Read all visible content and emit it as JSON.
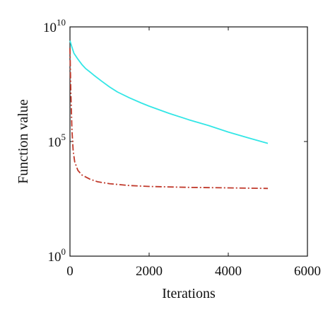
{
  "chart_data": {
    "type": "line",
    "title": "",
    "xlabel": "Iterations",
    "ylabel": "Function value",
    "xlim": [
      0,
      6000
    ],
    "ylim": [
      1,
      10000000000
    ],
    "yscale": "log",
    "grid": false,
    "x_ticks": [
      {
        "value": 0,
        "label": "0"
      },
      {
        "value": 2000,
        "label": "2000"
      },
      {
        "value": 4000,
        "label": "4000"
      },
      {
        "value": 6000,
        "label": "6000"
      }
    ],
    "y_ticks": [
      {
        "value": 1,
        "base": "10",
        "exp": "0"
      },
      {
        "value": 100000,
        "base": "10",
        "exp": "5"
      },
      {
        "value": 10000000000,
        "base": "10",
        "exp": "10"
      }
    ],
    "series": [
      {
        "color": "#33e6e6",
        "style": "solid",
        "x": [
          0,
          50,
          100,
          200,
          300,
          400,
          500,
          600,
          800,
          1000,
          1200,
          1500,
          1800,
          2000,
          2500,
          3000,
          3500,
          4000,
          4500,
          5000
        ],
        "y": [
          2500000000.0,
          1300000000.0,
          710000000.0,
          390000000.0,
          230000000.0,
          150000000.0,
          110000000.0,
          79000000.0,
          43000000.0,
          24000000.0,
          14500000.0,
          8100000.0,
          4800000.0,
          3500000.0,
          1700000.0,
          890000.0,
          500000.0,
          260000.0,
          145000.0,
          83000.0
        ]
      },
      {
        "color": "#c0392b",
        "style": "dashdot",
        "x": [
          0,
          20,
          50,
          80,
          120,
          200,
          300,
          500,
          700,
          1000,
          1500,
          2000,
          3000,
          4000,
          5000
        ],
        "y": [
          1200000000.0,
          20000000.0,
          320000.0,
          40000.0,
          13000.0,
          5500.0,
          3500.0,
          2300.0,
          1750.0,
          1450.0,
          1200.0,
          1100.0,
          1000.0,
          950.0,
          900.0
        ]
      }
    ]
  }
}
